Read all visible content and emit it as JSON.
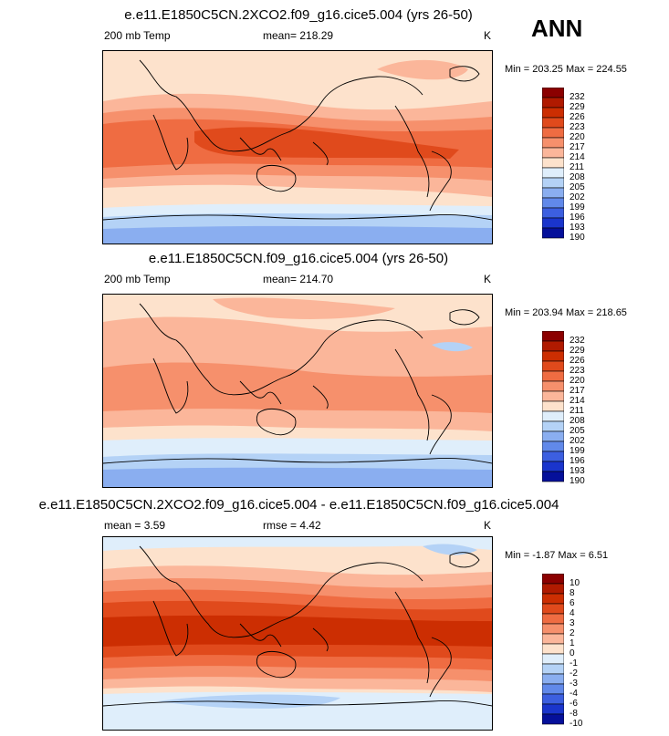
{
  "season": "ANN",
  "panels": [
    {
      "title": "e.e11.E1850C5CN.2XCO2.f09_g16.cice5.004 (yrs 26-50)",
      "left_label": "200 mb Temp",
      "center_label": "mean= 218.29",
      "units": "K",
      "minmax": "Min = 203.25 Max = 224.55",
      "levels": [
        "232",
        "229",
        "226",
        "223",
        "220",
        "217",
        "214",
        "211",
        "208",
        "205",
        "202",
        "199",
        "196",
        "193",
        "190"
      ],
      "colors": [
        "#8b0000",
        "#b01a00",
        "#cc2e02",
        "#e04a1c",
        "#ef6c42",
        "#f6906c",
        "#fbb69a",
        "#fde2cc",
        "#dfeefb",
        "#b4d2f6",
        "#8aaef0",
        "#6189ea",
        "#3c5fe0",
        "#1a35cc",
        "#05109a"
      ]
    },
    {
      "title": "e.e11.E1850C5CN.f09_g16.cice5.004 (yrs 26-50)",
      "left_label": "200 mb Temp",
      "center_label": "mean= 214.70",
      "units": "K",
      "minmax": "Min = 203.94 Max = 218.65",
      "levels": [
        "232",
        "229",
        "226",
        "223",
        "220",
        "217",
        "214",
        "211",
        "208",
        "205",
        "202",
        "199",
        "196",
        "193",
        "190"
      ],
      "colors": [
        "#8b0000",
        "#b01a00",
        "#cc2e02",
        "#e04a1c",
        "#ef6c42",
        "#f6906c",
        "#fbb69a",
        "#fde2cc",
        "#dfeefb",
        "#b4d2f6",
        "#8aaef0",
        "#6189ea",
        "#3c5fe0",
        "#1a35cc",
        "#05109a"
      ]
    },
    {
      "title": "e.e11.E1850C5CN.2XCO2.f09_g16.cice5.004 - e.e11.E1850C5CN.f09_g16.cice5.004",
      "left_label": "mean =  3.59",
      "center_label": "rmse =  4.42",
      "units": "K",
      "minmax": "Min =  -1.87 Max =   6.51",
      "levels": [
        "10",
        "8",
        "6",
        "4",
        "3",
        "2",
        "1",
        "0",
        "-1",
        "-2",
        "-3",
        "-4",
        "-6",
        "-8",
        "-10"
      ],
      "colors": [
        "#8b0000",
        "#b01a00",
        "#cc2e02",
        "#e04a1c",
        "#ef6c42",
        "#f6906c",
        "#fbb69a",
        "#fde2cc",
        "#dfeefb",
        "#b4d2f6",
        "#8aaef0",
        "#6189ea",
        "#3c5fe0",
        "#1a35cc",
        "#05109a"
      ]
    }
  ]
}
